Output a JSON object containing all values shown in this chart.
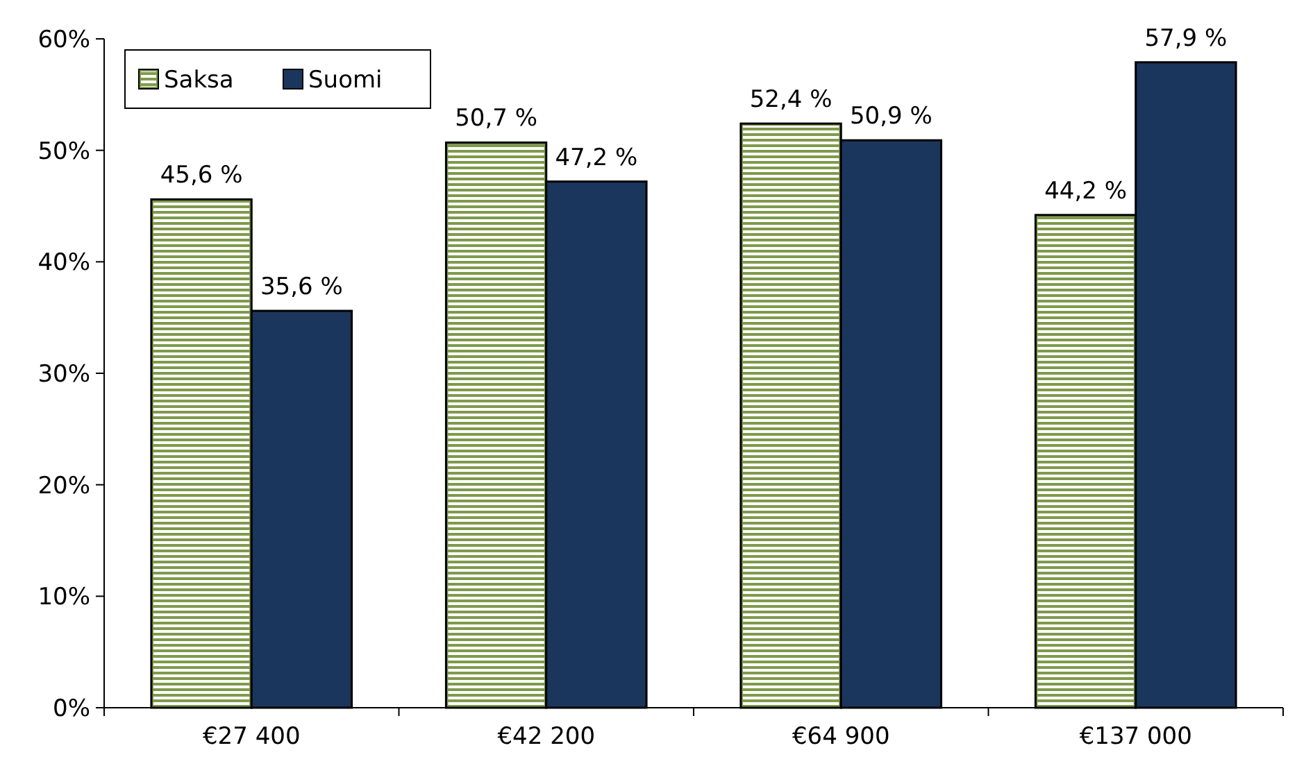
{
  "chart_data": {
    "type": "bar",
    "categories": [
      "€27 400",
      "€42 200",
      "€64 900",
      "€137 000"
    ],
    "series": [
      {
        "name": "Saksa",
        "color": "#7f9a4c",
        "values": [
          45.6,
          50.7,
          52.4,
          44.2
        ],
        "value_labels": [
          "45,6 %",
          "50,7 %",
          "52,4 %",
          "44,2 %"
        ]
      },
      {
        "name": "Suomi",
        "color": "#1b365d",
        "values": [
          35.6,
          47.2,
          50.9,
          57.9
        ],
        "value_labels": [
          "35,6 %",
          "47,2 %",
          "50,9 %",
          "57,9 %"
        ]
      }
    ],
    "ylim": [
      0,
      60
    ],
    "yticks": [
      {
        "value": 0,
        "label": "0%"
      },
      {
        "value": 10,
        "label": "10%"
      },
      {
        "value": 20,
        "label": "20%"
      },
      {
        "value": 30,
        "label": "30%"
      },
      {
        "value": 40,
        "label": "40%"
      },
      {
        "value": 50,
        "label": "50%"
      },
      {
        "value": 60,
        "label": "60%"
      }
    ],
    "grid": false,
    "legend": "top left"
  }
}
